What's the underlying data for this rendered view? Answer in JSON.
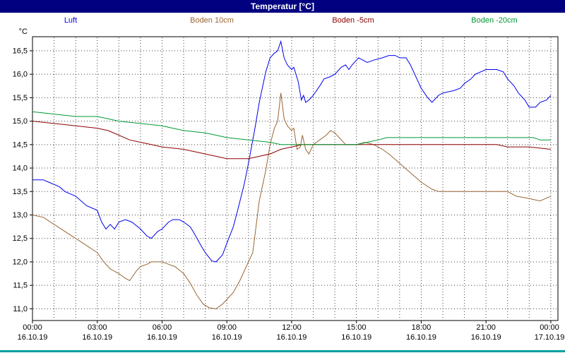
{
  "window": {
    "title": "Temperatur [°C]"
  },
  "colors": {
    "titlebar": "#000080",
    "grid": "#404040",
    "footer_strip": "#00a0a0"
  },
  "chart_data": {
    "type": "line",
    "title": "Temperatur [°C]",
    "unit_label": "°C",
    "ylim": [
      10.75,
      16.8
    ],
    "xlim_hours": [
      0,
      24.33
    ],
    "grid": {
      "vertical_interval_hours": 1,
      "horizontal_interval_degc": 0.5
    },
    "legend_position": "top",
    "y_ticks": [
      {
        "v": 16.5,
        "label": "16,5"
      },
      {
        "v": 16.0,
        "label": "16,0"
      },
      {
        "v": 15.5,
        "label": "15,5"
      },
      {
        "v": 15.0,
        "label": "15,0"
      },
      {
        "v": 14.5,
        "label": "14,5"
      },
      {
        "v": 14.0,
        "label": "14,0"
      },
      {
        "v": 13.5,
        "label": "13,5"
      },
      {
        "v": 13.0,
        "label": "13,0"
      },
      {
        "v": 12.5,
        "label": "12,5"
      },
      {
        "v": 12.0,
        "label": "12,0"
      },
      {
        "v": 11.5,
        "label": "11,5"
      },
      {
        "v": 11.0,
        "label": "11,0"
      }
    ],
    "x_ticks": [
      {
        "h": 0,
        "time": "00:00",
        "date": "16.10.19"
      },
      {
        "h": 3,
        "time": "03:00",
        "date": "16.10.19"
      },
      {
        "h": 6,
        "time": "06:00",
        "date": "16.10.19"
      },
      {
        "h": 9,
        "time": "09:00",
        "date": "16.10.19"
      },
      {
        "h": 12,
        "time": "12:00",
        "date": "16.10.19"
      },
      {
        "h": 15,
        "time": "15:00",
        "date": "16.10.19"
      },
      {
        "h": 18,
        "time": "18:00",
        "date": "16.10.19"
      },
      {
        "h": 21,
        "time": "21:00",
        "date": "16.10.19"
      },
      {
        "h": 24,
        "time": "00:00",
        "date": "17.10.19"
      }
    ],
    "series": [
      {
        "name": "Luft",
        "color": "#0000ee",
        "points": [
          [
            0,
            13.75
          ],
          [
            0.5,
            13.75
          ],
          [
            0.75,
            13.7
          ],
          [
            1.25,
            13.6
          ],
          [
            1.5,
            13.5
          ],
          [
            2,
            13.4
          ],
          [
            2.5,
            13.2
          ],
          [
            3,
            13.1
          ],
          [
            3.2,
            12.85
          ],
          [
            3.4,
            12.7
          ],
          [
            3.6,
            12.8
          ],
          [
            3.8,
            12.7
          ],
          [
            4,
            12.85
          ],
          [
            4.3,
            12.9
          ],
          [
            4.6,
            12.85
          ],
          [
            5,
            12.7
          ],
          [
            5.3,
            12.55
          ],
          [
            5.5,
            12.5
          ],
          [
            5.8,
            12.65
          ],
          [
            6,
            12.7
          ],
          [
            6.3,
            12.85
          ],
          [
            6.5,
            12.9
          ],
          [
            6.8,
            12.9
          ],
          [
            7,
            12.85
          ],
          [
            7.3,
            12.75
          ],
          [
            7.5,
            12.6
          ],
          [
            7.8,
            12.35
          ],
          [
            8,
            12.2
          ],
          [
            8.3,
            12.02
          ],
          [
            8.5,
            12.0
          ],
          [
            8.8,
            12.15
          ],
          [
            9,
            12.4
          ],
          [
            9.3,
            12.75
          ],
          [
            9.5,
            13.1
          ],
          [
            9.8,
            13.65
          ],
          [
            10,
            14.1
          ],
          [
            10.3,
            14.85
          ],
          [
            10.5,
            15.4
          ],
          [
            10.8,
            16.05
          ],
          [
            11,
            16.35
          ],
          [
            11.2,
            16.45
          ],
          [
            11.35,
            16.5
          ],
          [
            11.5,
            16.7
          ],
          [
            11.65,
            16.35
          ],
          [
            11.8,
            16.2
          ],
          [
            12,
            16.1
          ],
          [
            12.1,
            16.15
          ],
          [
            12.3,
            15.85
          ],
          [
            12.45,
            15.45
          ],
          [
            12.55,
            15.55
          ],
          [
            12.65,
            15.4
          ],
          [
            12.8,
            15.45
          ],
          [
            13,
            15.55
          ],
          [
            13.3,
            15.75
          ],
          [
            13.5,
            15.9
          ],
          [
            13.8,
            15.95
          ],
          [
            14,
            16.0
          ],
          [
            14.3,
            16.15
          ],
          [
            14.5,
            16.2
          ],
          [
            14.65,
            16.1
          ],
          [
            14.8,
            16.2
          ],
          [
            15,
            16.3
          ],
          [
            15.1,
            16.35
          ],
          [
            15.3,
            16.3
          ],
          [
            15.5,
            16.25
          ],
          [
            15.8,
            16.3
          ],
          [
            16.2,
            16.35
          ],
          [
            16.5,
            16.4
          ],
          [
            16.8,
            16.4
          ],
          [
            17,
            16.35
          ],
          [
            17.3,
            16.35
          ],
          [
            17.5,
            16.2
          ],
          [
            17.8,
            15.9
          ],
          [
            18,
            15.7
          ],
          [
            18.3,
            15.5
          ],
          [
            18.5,
            15.4
          ],
          [
            18.8,
            15.55
          ],
          [
            19,
            15.6
          ],
          [
            19.5,
            15.65
          ],
          [
            19.8,
            15.7
          ],
          [
            20,
            15.8
          ],
          [
            20.3,
            15.9
          ],
          [
            20.5,
            16.0
          ],
          [
            21,
            16.1
          ],
          [
            21.5,
            16.1
          ],
          [
            21.8,
            16.05
          ],
          [
            22,
            15.9
          ],
          [
            22.3,
            15.75
          ],
          [
            22.5,
            15.6
          ],
          [
            22.8,
            15.45
          ],
          [
            23,
            15.3
          ],
          [
            23.3,
            15.3
          ],
          [
            23.5,
            15.4
          ],
          [
            23.8,
            15.45
          ],
          [
            24,
            15.55
          ]
        ]
      },
      {
        "name": "Boden 10cm",
        "color": "#996633",
        "points": [
          [
            0,
            13.0
          ],
          [
            0.5,
            12.95
          ],
          [
            1,
            12.8
          ],
          [
            1.5,
            12.65
          ],
          [
            2,
            12.5
          ],
          [
            2.5,
            12.35
          ],
          [
            3,
            12.2
          ],
          [
            3.3,
            12.0
          ],
          [
            3.6,
            11.85
          ],
          [
            4,
            11.75
          ],
          [
            4.3,
            11.65
          ],
          [
            4.5,
            11.6
          ],
          [
            4.8,
            11.8
          ],
          [
            5,
            11.9
          ],
          [
            5.3,
            11.95
          ],
          [
            5.5,
            12.0
          ],
          [
            6,
            12.0
          ],
          [
            6.3,
            11.95
          ],
          [
            6.6,
            11.9
          ],
          [
            7,
            11.75
          ],
          [
            7.3,
            11.55
          ],
          [
            7.6,
            11.3
          ],
          [
            7.9,
            11.1
          ],
          [
            8.2,
            11.02
          ],
          [
            8.5,
            11.0
          ],
          [
            8.8,
            11.1
          ],
          [
            9,
            11.2
          ],
          [
            9.3,
            11.35
          ],
          [
            9.6,
            11.6
          ],
          [
            9.9,
            11.9
          ],
          [
            10.2,
            12.2
          ],
          [
            10.5,
            13.3
          ],
          [
            10.8,
            13.95
          ],
          [
            11,
            14.5
          ],
          [
            11.2,
            14.85
          ],
          [
            11.35,
            15.0
          ],
          [
            11.5,
            15.6
          ],
          [
            11.65,
            15.05
          ],
          [
            11.8,
            14.9
          ],
          [
            12,
            14.8
          ],
          [
            12.1,
            14.85
          ],
          [
            12.25,
            14.4
          ],
          [
            12.4,
            14.45
          ],
          [
            12.5,
            14.7
          ],
          [
            12.65,
            14.4
          ],
          [
            12.8,
            14.3
          ],
          [
            13,
            14.5
          ],
          [
            13.3,
            14.6
          ],
          [
            13.6,
            14.7
          ],
          [
            13.8,
            14.8
          ],
          [
            14,
            14.75
          ],
          [
            14.3,
            14.6
          ],
          [
            14.5,
            14.5
          ],
          [
            15,
            14.5
          ],
          [
            15.4,
            14.55
          ],
          [
            15.8,
            14.5
          ],
          [
            16.2,
            14.4
          ],
          [
            16.5,
            14.3
          ],
          [
            17,
            14.1
          ],
          [
            17.5,
            13.9
          ],
          [
            18,
            13.7
          ],
          [
            18.5,
            13.55
          ],
          [
            18.8,
            13.5
          ],
          [
            20,
            13.5
          ],
          [
            21,
            13.5
          ],
          [
            22,
            13.5
          ],
          [
            22.4,
            13.4
          ],
          [
            23,
            13.35
          ],
          [
            23.5,
            13.3
          ],
          [
            24,
            13.4
          ]
        ]
      },
      {
        "name": "Boden -5cm",
        "color": "#8b0000",
        "points": [
          [
            0,
            15.0
          ],
          [
            1,
            14.95
          ],
          [
            2,
            14.9
          ],
          [
            3,
            14.85
          ],
          [
            3.5,
            14.8
          ],
          [
            4,
            14.7
          ],
          [
            4.5,
            14.6
          ],
          [
            5,
            14.55
          ],
          [
            5.5,
            14.5
          ],
          [
            6,
            14.45
          ],
          [
            7,
            14.4
          ],
          [
            7.5,
            14.35
          ],
          [
            8,
            14.3
          ],
          [
            8.5,
            14.25
          ],
          [
            9,
            14.2
          ],
          [
            10,
            14.2
          ],
          [
            10.5,
            14.25
          ],
          [
            11,
            14.3
          ],
          [
            11.5,
            14.4
          ],
          [
            12,
            14.45
          ],
          [
            12.5,
            14.5
          ],
          [
            14,
            14.5
          ],
          [
            16,
            14.5
          ],
          [
            18,
            14.5
          ],
          [
            20,
            14.5
          ],
          [
            21.5,
            14.5
          ],
          [
            22,
            14.45
          ],
          [
            23,
            14.45
          ],
          [
            24,
            14.4
          ]
        ]
      },
      {
        "name": "Boden -20cm",
        "color": "#009933",
        "points": [
          [
            0,
            15.2
          ],
          [
            1,
            15.15
          ],
          [
            2,
            15.1
          ],
          [
            3,
            15.1
          ],
          [
            3.5,
            15.05
          ],
          [
            4,
            15.0
          ],
          [
            5,
            14.95
          ],
          [
            6,
            14.9
          ],
          [
            6.5,
            14.85
          ],
          [
            7,
            14.8
          ],
          [
            8,
            14.75
          ],
          [
            8.5,
            14.7
          ],
          [
            9,
            14.65
          ],
          [
            10,
            14.6
          ],
          [
            11,
            14.55
          ],
          [
            11.5,
            14.5
          ],
          [
            13,
            14.5
          ],
          [
            15,
            14.5
          ],
          [
            15.5,
            14.55
          ],
          [
            16,
            14.6
          ],
          [
            16.4,
            14.65
          ],
          [
            18,
            14.65
          ],
          [
            20,
            14.65
          ],
          [
            22,
            14.65
          ],
          [
            23.2,
            14.65
          ],
          [
            23.5,
            14.6
          ],
          [
            24,
            14.6
          ]
        ]
      }
    ]
  }
}
